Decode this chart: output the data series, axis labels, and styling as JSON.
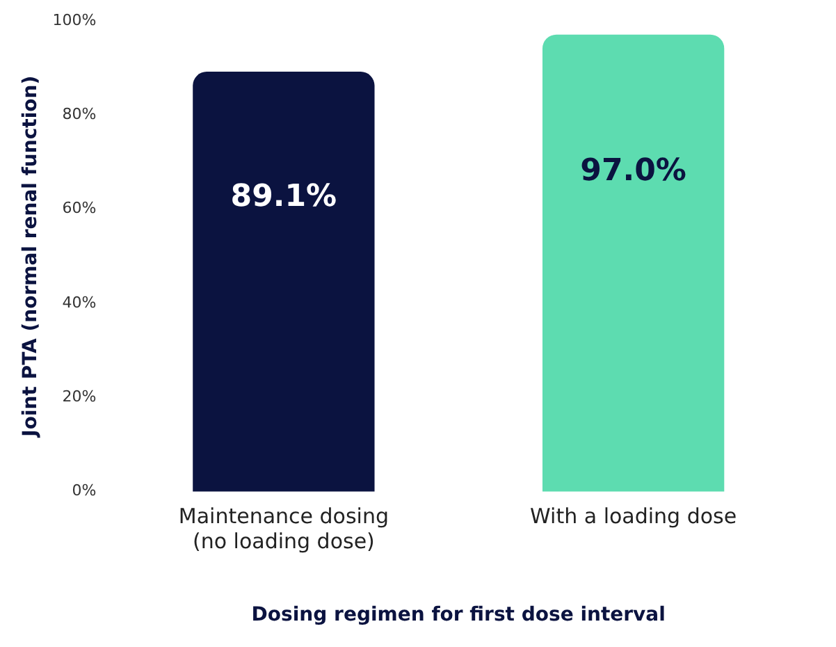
{
  "chart_data": {
    "type": "bar",
    "xlabel": "Dosing regimen for first dose interval",
    "ylabel": "Joint PTA (normal renal function)",
    "categories": [
      "Maintenance dosing (no loading dose)",
      "With a loading dose"
    ],
    "values": [
      89.1,
      97.0
    ],
    "colors": [
      "#0b1340",
      "#5ddcb0"
    ],
    "value_labels": [
      "89.1%",
      "97.0%"
    ],
    "ylim": [
      0,
      100
    ],
    "yticks": [
      {
        "value": 0,
        "label": "0%"
      },
      {
        "value": 20,
        "label": "20%"
      },
      {
        "value": 40,
        "label": "40%"
      },
      {
        "value": 60,
        "label": "60%"
      },
      {
        "value": 80,
        "label": "80%"
      },
      {
        "value": 100,
        "label": "100%"
      }
    ],
    "grid": false,
    "legend": false
  }
}
